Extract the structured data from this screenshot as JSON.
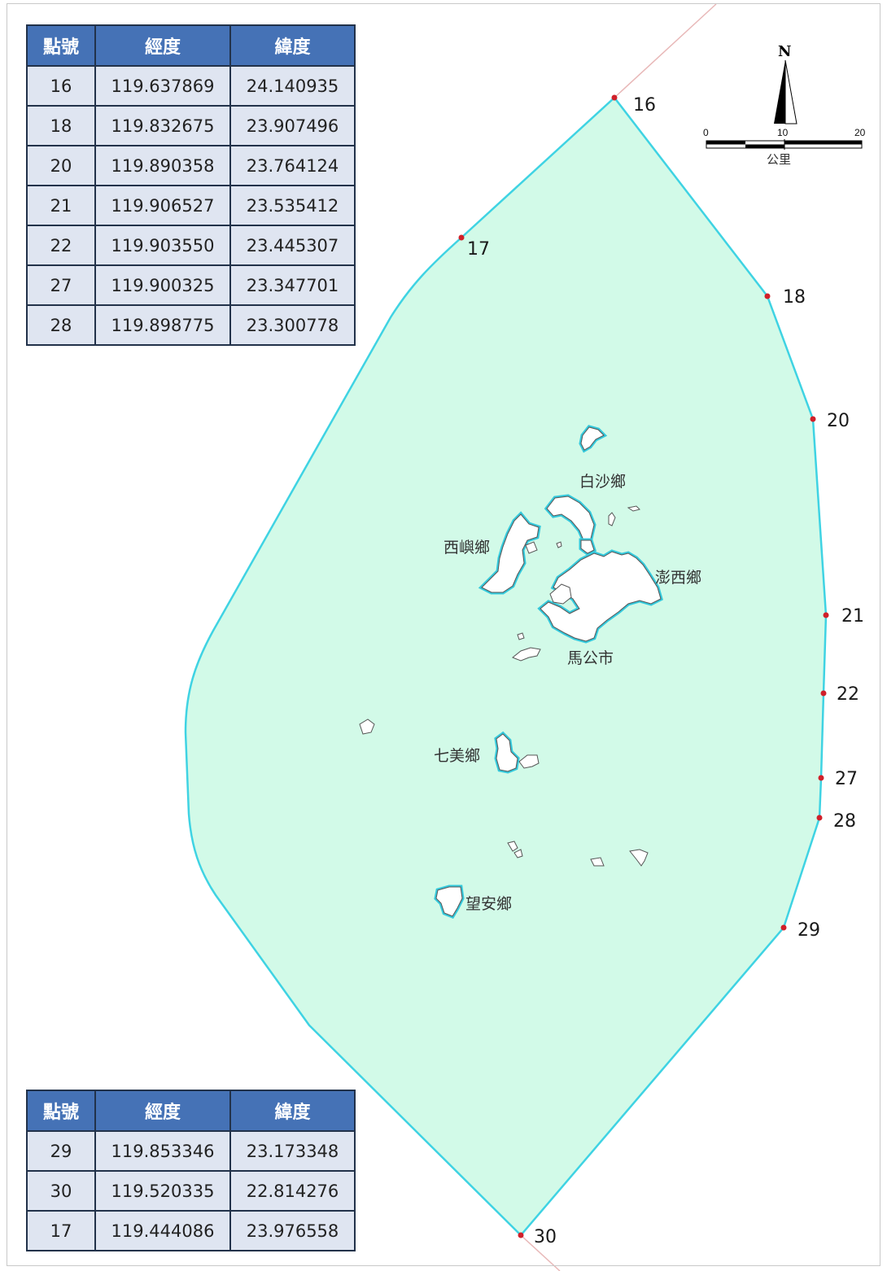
{
  "tables": {
    "headers": [
      "點號",
      "經度",
      "緯度"
    ],
    "top_rows": [
      [
        "16",
        "119.637869",
        "24.140935"
      ],
      [
        "18",
        "119.832675",
        "23.907496"
      ],
      [
        "20",
        "119.890358",
        "23.764124"
      ],
      [
        "21",
        "119.906527",
        "23.535412"
      ],
      [
        "22",
        "119.903550",
        "23.445307"
      ],
      [
        "27",
        "119.900325",
        "23.347701"
      ],
      [
        "28",
        "119.898775",
        "23.300778"
      ]
    ],
    "bottom_rows": [
      [
        "29",
        "119.853346",
        "23.173348"
      ],
      [
        "30",
        "119.520335",
        "22.814276"
      ],
      [
        "17",
        "119.444086",
        "23.976558"
      ]
    ]
  },
  "boundary_points": [
    {
      "label": "16",
      "lon": 119.637869,
      "lat": 24.140935
    },
    {
      "label": "17",
      "lon": 119.444086,
      "lat": 23.976558
    },
    {
      "label": "18",
      "lon": 119.832675,
      "lat": 23.907496
    },
    {
      "label": "20",
      "lon": 119.890358,
      "lat": 23.764124
    },
    {
      "label": "21",
      "lon": 119.906527,
      "lat": 23.535412
    },
    {
      "label": "22",
      "lon": 119.90355,
      "lat": 23.445307
    },
    {
      "label": "27",
      "lon": 119.900325,
      "lat": 23.347701
    },
    {
      "label": "28",
      "lon": 119.898775,
      "lat": 23.300778
    },
    {
      "label": "29",
      "lon": 119.853346,
      "lat": 23.173348
    },
    {
      "label": "30",
      "lon": 119.520335,
      "lat": 22.814276
    }
  ],
  "townships": {
    "baisha": "白沙鄉",
    "xiyu": "西嶼鄉",
    "huxi": "澎西鄉",
    "magong": "馬公市",
    "qimei": "七美鄉",
    "wangan": "望安鄉"
  },
  "scale_bar": {
    "ticks": [
      "0",
      "10",
      "20"
    ],
    "unit": "公里"
  },
  "north_arrow": {
    "label": "N"
  },
  "colors": {
    "area_fill": "#d2fae8",
    "boundary_line": "#3fd3e3",
    "point_marker": "#d0202a",
    "island_fill": "#ffffff",
    "island_outline": "#555555",
    "island_coast": "#35c9dc",
    "table_header": "#4572b6",
    "table_cell": "#dfe5f1",
    "external_line": "#e8b8b8"
  }
}
